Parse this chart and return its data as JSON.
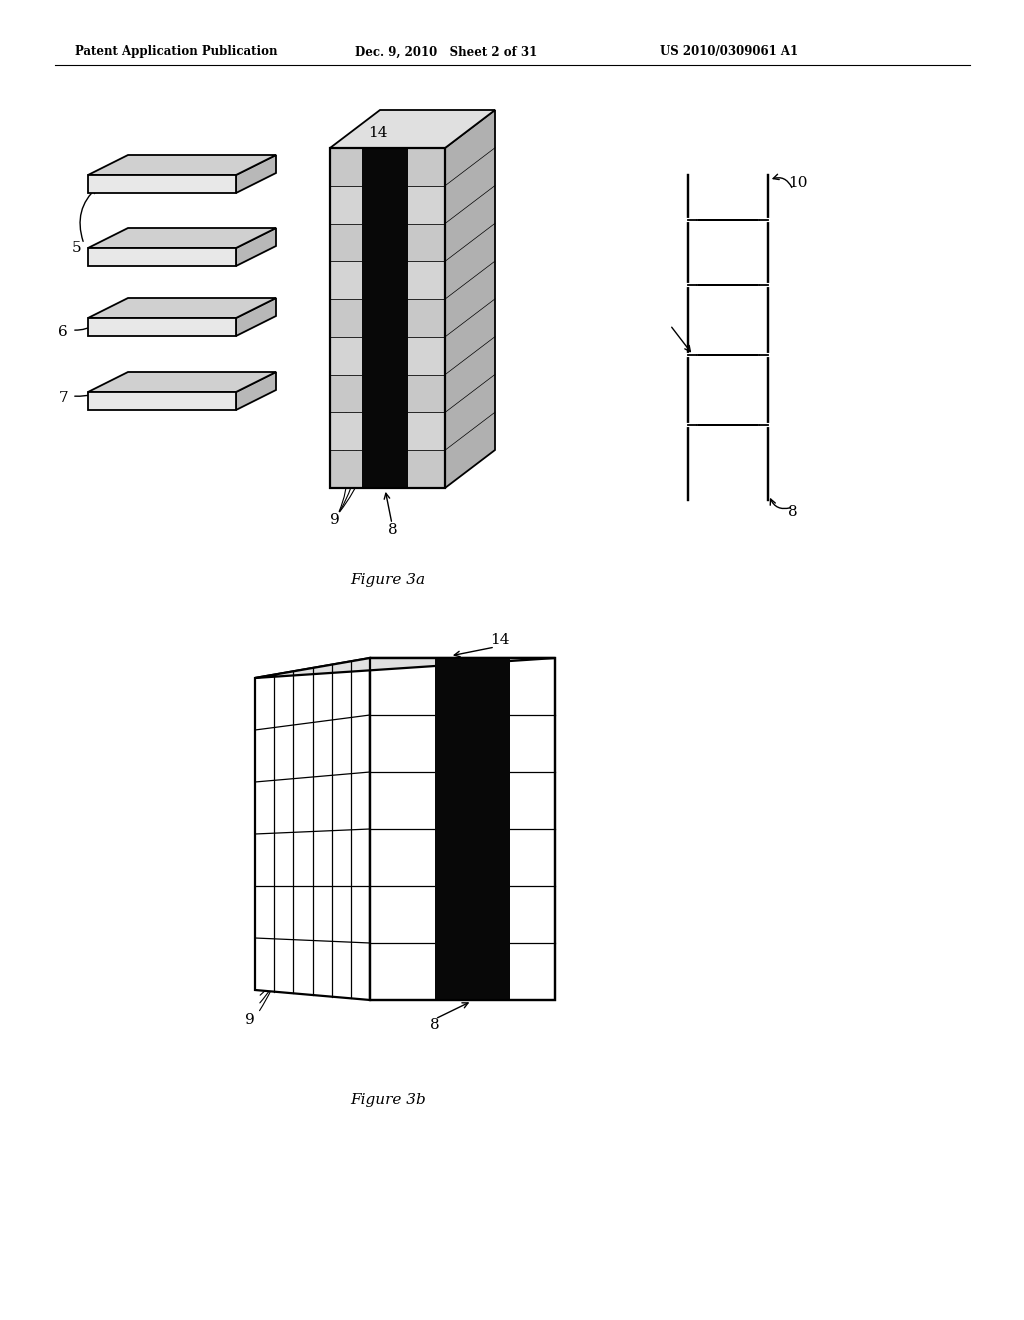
{
  "bg_color": "#ffffff",
  "header_left": "Patent Application Publication",
  "header_mid": "Dec. 9, 2010   Sheet 2 of 31",
  "header_right": "US 2010/0309061 A1",
  "fig3a_caption": "Figure 3a",
  "fig3b_caption": "Figure 3b",
  "page_width": 10.24,
  "page_height": 13.2
}
